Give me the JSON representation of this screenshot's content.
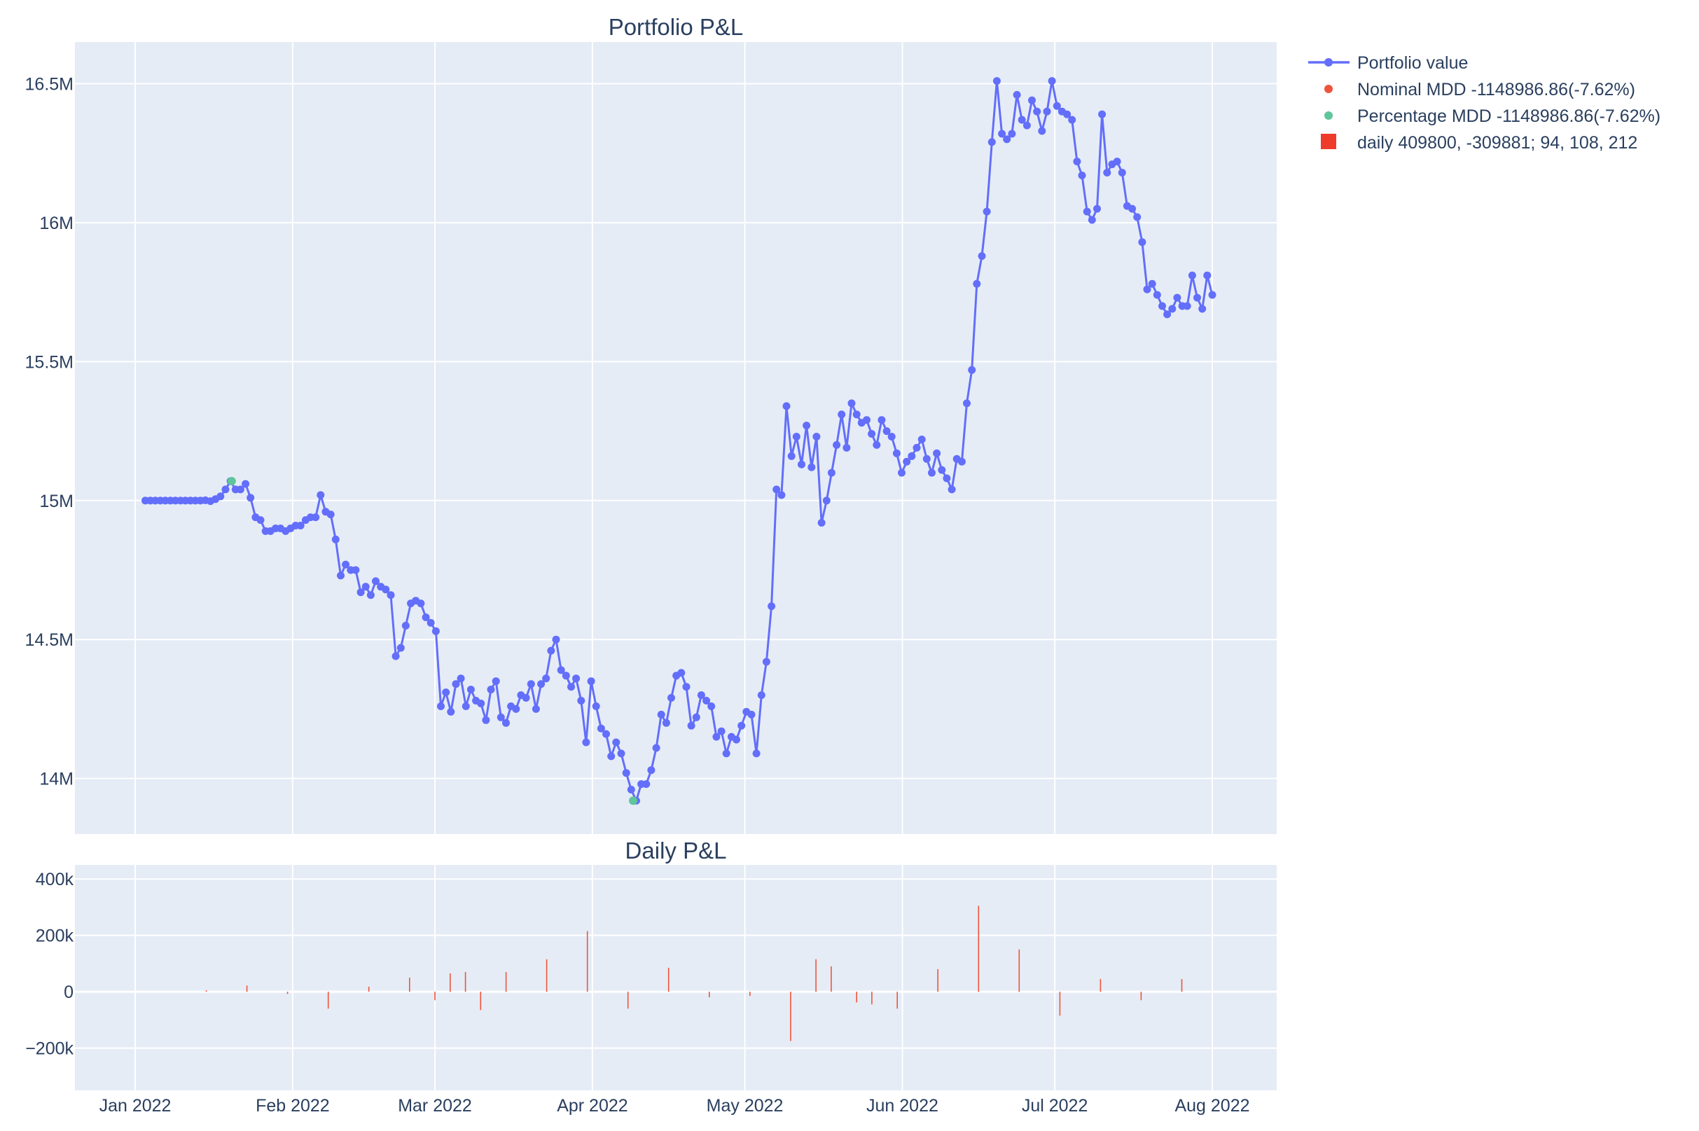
{
  "chart_data": [
    {
      "type": "line",
      "title": "Portfolio P&L",
      "xlabel": "",
      "ylabel": "",
      "x_start": "2022-01-03",
      "x_ticks": [
        "Jan 2022",
        "Feb 2022",
        "Mar 2022",
        "Apr 2022",
        "May 2022",
        "Jun 2022",
        "Jul 2022",
        "Aug 2022"
      ],
      "ylim": [
        13800000,
        16650000
      ],
      "y_ticks": [
        14000000,
        14500000,
        15000000,
        15500000,
        16000000,
        16500000
      ],
      "y_tick_labels": [
        "14M",
        "14.5M",
        "15M",
        "15.5M",
        "16M",
        "16.5M"
      ],
      "grid": true,
      "legend_position": "top-right outside",
      "series": [
        {
          "name": "Portfolio value",
          "color": "#636efa",
          "marker": "circle",
          "values": [
            15000000,
            15000000,
            15000000,
            15000000,
            15000000,
            15000000,
            15000000,
            15000000,
            15000000,
            15000000,
            15000000,
            15000000,
            15001000,
            14998000,
            15005000,
            15015000,
            15040000,
            15070000,
            15040000,
            15040000,
            15060000,
            15010000,
            14940000,
            14930000,
            14890000,
            14890000,
            14900000,
            14900000,
            14890000,
            14900000,
            14910000,
            14910000,
            14930000,
            14940000,
            14940000,
            15020000,
            14960000,
            14950000,
            14860000,
            14730000,
            14770000,
            14750000,
            14750000,
            14670000,
            14690000,
            14660000,
            14710000,
            14690000,
            14680000,
            14660000,
            14440000,
            14470000,
            14550000,
            14630000,
            14640000,
            14630000,
            14580000,
            14560000,
            14530000,
            14260000,
            14310000,
            14240000,
            14340000,
            14360000,
            14260000,
            14320000,
            14280000,
            14270000,
            14210000,
            14320000,
            14350000,
            14220000,
            14200000,
            14260000,
            14250000,
            14300000,
            14290000,
            14340000,
            14250000,
            14340000,
            14360000,
            14460000,
            14500000,
            14390000,
            14370000,
            14330000,
            14360000,
            14280000,
            14130000,
            14350000,
            14260000,
            14180000,
            14160000,
            14080000,
            14130000,
            14090000,
            14020000,
            13960000,
            13920000,
            13980000,
            13980000,
            14030000,
            14110000,
            14230000,
            14200000,
            14290000,
            14370000,
            14380000,
            14330000,
            14190000,
            14220000,
            14300000,
            14280000,
            14260000,
            14150000,
            14170000,
            14090000,
            14150000,
            14140000,
            14190000,
            14240000,
            14230000,
            14090000,
            14300000,
            14420000,
            14620000,
            15040000,
            15020000,
            15340000,
            15160000,
            15230000,
            15130000,
            15270000,
            15120000,
            15230000,
            14920000,
            15000000,
            15100000,
            15200000,
            15310000,
            15190000,
            15350000,
            15310000,
            15280000,
            15290000,
            15240000,
            15200000,
            15290000,
            15250000,
            15230000,
            15170000,
            15100000,
            15140000,
            15160000,
            15190000,
            15220000,
            15150000,
            15100000,
            15170000,
            15110000,
            15080000,
            15040000,
            15150000,
            15140000,
            15350000,
            15470000,
            15780000,
            15880000,
            16040000,
            16290000,
            16510000,
            16320000,
            16300000,
            16320000,
            16460000,
            16370000,
            16350000,
            16440000,
            16400000,
            16330000,
            16400000,
            16510000,
            16420000,
            16400000,
            16390000,
            16370000,
            16220000,
            16170000,
            16040000,
            16010000,
            16050000,
            16390000,
            16180000,
            16210000,
            16220000,
            16180000,
            16060000,
            16050000,
            16020000,
            15930000,
            15760000,
            15780000,
            15740000,
            15700000,
            15670000,
            15690000,
            15730000,
            15700000,
            15700000,
            15810000,
            15730000,
            15690000,
            15810000,
            15740000
          ]
        },
        {
          "name": "Nominal MDD -1148986.86(-7.62%)",
          "color": "#ef553b",
          "marker": "circle"
        },
        {
          "name": "Percentage MDD -1148986.86(-7.62%)",
          "color": "#5fc59a",
          "marker": "circle",
          "points": [
            {
              "date": "2022-01-20",
              "value": 15070000
            },
            {
              "date": "2022-04-09",
              "value": 13920000
            }
          ]
        }
      ]
    },
    {
      "type": "bar",
      "title": "Daily P&L",
      "xlabel": "",
      "ylabel": "",
      "x_ticks": [
        "Jan 2022",
        "Feb 2022",
        "Mar 2022",
        "Apr 2022",
        "May 2022",
        "Jun 2022",
        "Jul 2022",
        "Aug 2022"
      ],
      "ylim": [
        -350000,
        450000
      ],
      "y_ticks": [
        -200000,
        0,
        200000,
        400000
      ],
      "y_tick_labels": [
        "−200k",
        "0",
        "200k",
        "400k"
      ],
      "grid": true,
      "series": [
        {
          "name": "daily 409800, -309881; 94, 108, 212",
          "color": "#ef553b",
          "bars": [
            {
              "date": "2022-01-15",
              "value": 5000
            },
            {
              "date": "2022-01-23",
              "value": 22000
            },
            {
              "date": "2022-01-31",
              "value": -8000
            },
            {
              "date": "2022-02-08",
              "value": -60000
            },
            {
              "date": "2022-02-16",
              "value": 18000
            },
            {
              "date": "2022-02-24",
              "value": 50000
            },
            {
              "date": "2022-03-01",
              "value": -30000
            },
            {
              "date": "2022-03-04",
              "value": 65000
            },
            {
              "date": "2022-03-07",
              "value": 70000
            },
            {
              "date": "2022-03-10",
              "value": -65000
            },
            {
              "date": "2022-03-15",
              "value": 70000
            },
            {
              "date": "2022-03-23",
              "value": 115000
            },
            {
              "date": "2022-03-31",
              "value": 215000
            },
            {
              "date": "2022-04-08",
              "value": -60000
            },
            {
              "date": "2022-04-16",
              "value": 85000
            },
            {
              "date": "2022-04-24",
              "value": -20000
            },
            {
              "date": "2022-05-02",
              "value": -15000
            },
            {
              "date": "2022-05-10",
              "value": -175000
            },
            {
              "date": "2022-05-15",
              "value": 115000
            },
            {
              "date": "2022-05-18",
              "value": 90000
            },
            {
              "date": "2022-05-23",
              "value": -38000
            },
            {
              "date": "2022-05-26",
              "value": -45000
            },
            {
              "date": "2022-05-31",
              "value": -60000
            },
            {
              "date": "2022-06-08",
              "value": 80000
            },
            {
              "date": "2022-06-16",
              "value": 305000
            },
            {
              "date": "2022-06-24",
              "value": 150000
            },
            {
              "date": "2022-07-02",
              "value": -85000
            },
            {
              "date": "2022-07-10",
              "value": 45000
            },
            {
              "date": "2022-07-18",
              "value": -30000
            },
            {
              "date": "2022-07-26",
              "value": 45000
            }
          ]
        }
      ]
    }
  ]
}
